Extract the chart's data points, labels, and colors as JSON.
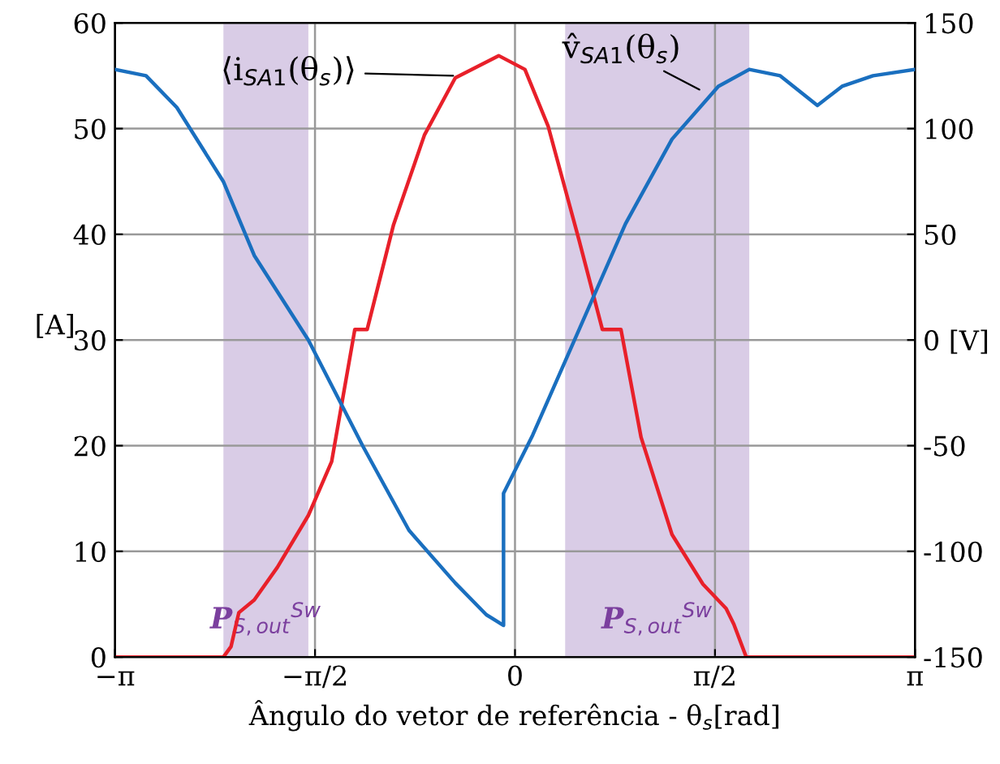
{
  "chart_data": {
    "type": "line",
    "xlabel": "Ângulo do vetor de referência - θ$_{s}$[rad]",
    "ylabel": "[A]",
    "xlim": [
      -3.1416,
      3.1416
    ],
    "xticks": [
      {
        "value": -3.1416,
        "label": "−π"
      },
      {
        "value": -1.5708,
        "label": "−π/2"
      },
      0,
      {
        "value": 1.5708,
        "label": "π/2"
      },
      {
        "value": 3.1416,
        "label": "π"
      }
    ],
    "ylim": [
      0,
      60
    ],
    "yticks": [
      0,
      10,
      20,
      30,
      40,
      50,
      60
    ],
    "y2lim": [
      -150,
      150
    ],
    "y2ticks": [
      -150,
      -100,
      -50,
      {
        "value": 0,
        "label": "0 [V]"
      },
      50,
      100,
      150
    ],
    "grid": true,
    "legend": false,
    "series": [
      {
        "color": "#e8202a",
        "x": [
          -3.1416,
          -2.29,
          -2.23,
          -2.169,
          -2.048,
          -1.866,
          -1.623,
          -1.44,
          -1.258,
          -1.161,
          -0.954,
          -0.711,
          -0.469,
          -0.128,
          0.078,
          0.261,
          0.504,
          0.686,
          0.832,
          0.99,
          1.233,
          1.476,
          1.658,
          1.719,
          1.816,
          3.1416
        ],
        "values": [
          0,
          0,
          1,
          4.2,
          5.4,
          8.5,
          13.4,
          18.5,
          31,
          31,
          40.9,
          49.4,
          54.8,
          56.9,
          55.6,
          50.2,
          39.4,
          31,
          31,
          20.8,
          11.6,
          6.9,
          4.6,
          3.1,
          0,
          0
        ]
      },
      {
        "color": "#1a6fbf",
        "axis": "y2",
        "x": [
          -3.1416,
          -2.898,
          -2.656,
          -2.291,
          -2.048,
          -1.623,
          -1.197,
          -0.833,
          -0.469,
          -0.225,
          -0.09,
          -0.09,
          0.139,
          0.504,
          0.868,
          1.233,
          1.597,
          1.84,
          2.083,
          2.375,
          2.569,
          2.812,
          3.1416
        ],
        "values": [
          128,
          125,
          110,
          75,
          40,
          0,
          -50,
          -90,
          -115,
          -130,
          -135,
          -72.5,
          -45,
          5,
          55,
          95,
          120,
          128,
          125,
          111,
          120,
          125,
          128
        ]
      }
    ],
    "bands": [
      {
        "axis": "x",
        "from": -2.29,
        "to": -1.623,
        "label": "P$_{S,out}$$^{Sw}$",
        "color": "#d9cce6"
      },
      {
        "axis": "x",
        "from": 0.394,
        "to": 1.84,
        "label": "P$_{S,out}$$^{Sw}$",
        "color": "#d9cce6"
      }
    ],
    "annotations": [
      {
        "text": "⟨i$_{SA1}$(θ$_{s}$)⟩",
        "x": -0.45,
        "y": 55
      },
      {
        "text": "v̂$_{SA1}$(θ$_{s}$)",
        "x": 1.48,
        "y": 53.5
      }
    ]
  }
}
